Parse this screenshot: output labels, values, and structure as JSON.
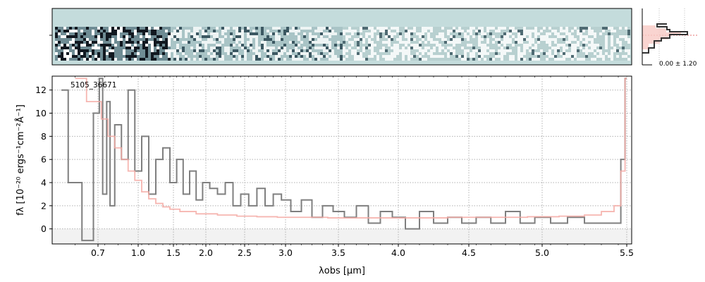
{
  "chart_data": {
    "type": "line",
    "label": "5105_36671",
    "xlabel": "λobs [μm]",
    "ylabel": "fλ [10⁻²⁰ ergs⁻¹cm⁻²Å⁻¹]",
    "ylim": [
      -1.3,
      13.2
    ],
    "grid": true,
    "x_scale": "spectral (non-linear)",
    "x_ticks": [
      {
        "label": "0.7",
        "value": 0.7
      },
      {
        "label": "1.0",
        "value": 1.0
      },
      {
        "label": "1.5",
        "value": 1.5
      },
      {
        "label": "2.0",
        "value": 2.0
      },
      {
        "label": "2.5",
        "value": 2.5
      },
      {
        "label": "3.0",
        "value": 3.0
      },
      {
        "label": "3.5",
        "value": 3.5
      },
      {
        "label": "4.0",
        "value": 4.0
      },
      {
        "label": "4.5",
        "value": 4.5
      },
      {
        "label": "5.0",
        "value": 5.0
      },
      {
        "label": "5.5",
        "value": 5.5
      }
    ],
    "y_ticks": [
      0,
      2,
      4,
      6,
      8,
      10,
      12
    ],
    "series": [
      {
        "color": "#7f7f7f",
        "x": [
          0.62,
          0.65,
          0.68,
          0.7,
          0.72,
          0.75,
          0.78,
          0.8,
          0.85,
          0.9,
          0.95,
          1.0,
          1.1,
          1.2,
          1.3,
          1.4,
          1.5,
          1.6,
          1.7,
          1.8,
          1.9,
          2.0,
          2.1,
          2.2,
          2.3,
          2.4,
          2.5,
          2.6,
          2.7,
          2.8,
          2.9,
          3.0,
          3.1,
          3.2,
          3.3,
          3.4,
          3.5,
          3.6,
          3.7,
          3.8,
          3.9,
          4.0,
          4.1,
          4.2,
          4.3,
          4.4,
          4.5,
          4.6,
          4.7,
          4.8,
          4.9,
          5.0,
          5.1,
          5.2,
          5.3,
          5.4,
          5.45,
          5.48,
          5.5
        ],
        "y": [
          12,
          4,
          -1,
          10,
          13,
          3,
          11,
          2,
          9,
          6,
          12,
          5,
          8,
          3,
          6,
          7,
          4,
          6,
          3,
          5,
          2.5,
          4,
          3.5,
          3,
          4,
          2,
          3,
          2,
          3.5,
          2,
          3,
          2.5,
          1.5,
          2.5,
          1,
          2,
          1.5,
          1,
          2,
          0.5,
          1.5,
          1,
          0,
          1.5,
          0.5,
          1,
          0.5,
          1,
          0.5,
          1.5,
          0.5,
          1,
          0.5,
          1,
          0.5,
          0.5,
          0.5,
          6,
          13
        ]
      },
      {
        "color": "#f4a9a3",
        "x": [
          0.65,
          0.7,
          0.75,
          0.8,
          0.85,
          0.9,
          0.95,
          1.0,
          1.1,
          1.2,
          1.3,
          1.4,
          1.5,
          1.7,
          2.0,
          2.3,
          2.5,
          2.8,
          3.0,
          3.3,
          3.5,
          3.8,
          4.0,
          4.2,
          4.5,
          4.8,
          5.0,
          5.2,
          5.3,
          5.4,
          5.45,
          5.48,
          5.5
        ],
        "y": [
          13,
          11,
          9.5,
          8,
          7,
          6,
          5,
          4.2,
          3.2,
          2.6,
          2.2,
          1.9,
          1.7,
          1.5,
          1.3,
          1.2,
          1.1,
          1.05,
          1.0,
          1.0,
          0.95,
          0.95,
          0.95,
          0.95,
          1.0,
          1.0,
          1.05,
          1.1,
          1.2,
          1.5,
          2.0,
          5.0,
          13
        ]
      }
    ]
  },
  "side_panel": {
    "label": "0.00 ± 1.20"
  }
}
